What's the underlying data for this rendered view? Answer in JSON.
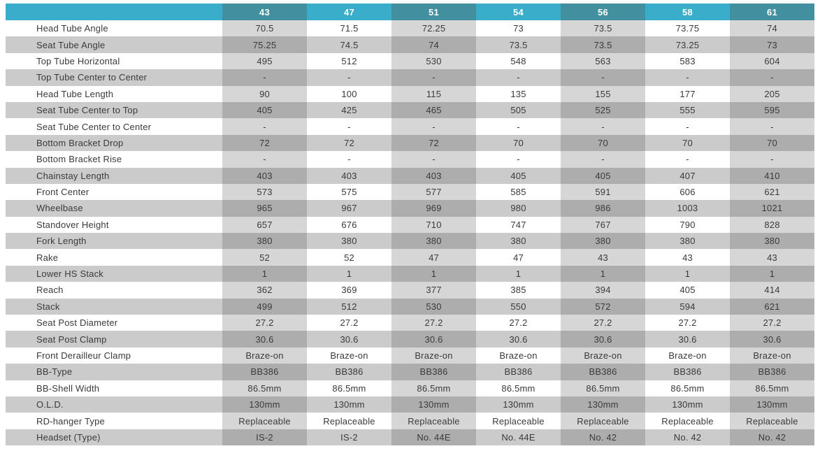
{
  "colors": {
    "head_light": "#3aadcb",
    "head_dark": "#42909f",
    "head_text": "#ffffff",
    "row_gray": "#cbcbcb",
    "shade_on_white": "#d6d6d6",
    "shade_on_gray": "#adadad",
    "body_text": "#3a3a3a"
  },
  "table": {
    "sizes": [
      "43",
      "47",
      "51",
      "54",
      "56",
      "58",
      "61"
    ],
    "rows": [
      {
        "label": "Head Tube Angle",
        "values": [
          "70.5",
          "71.5",
          "72.25",
          "73",
          "73.5",
          "73.75",
          "74"
        ]
      },
      {
        "label": "Seat Tube Angle",
        "values": [
          "75.25",
          "74.5",
          "74",
          "73.5",
          "73.5",
          "73.25",
          "73"
        ]
      },
      {
        "label": "Top Tube Horizontal",
        "values": [
          "495",
          "512",
          "530",
          "548",
          "563",
          "583",
          "604"
        ]
      },
      {
        "label": "Top Tube Center to Center",
        "values": [
          "-",
          "-",
          "-",
          "-",
          "-",
          "-",
          "-"
        ]
      },
      {
        "label": "Head Tube Length",
        "values": [
          "90",
          "100",
          "115",
          "135",
          "155",
          "177",
          "205"
        ]
      },
      {
        "label": "Seat Tube Center to Top",
        "values": [
          "405",
          "425",
          "465",
          "505",
          "525",
          "555",
          "595"
        ]
      },
      {
        "label": "Seat Tube Center to Center",
        "values": [
          "-",
          "-",
          "-",
          "-",
          "-",
          "-",
          "-"
        ]
      },
      {
        "label": "Bottom Bracket Drop",
        "values": [
          "72",
          "72",
          "72",
          "70",
          "70",
          "70",
          "70"
        ]
      },
      {
        "label": "Bottom Bracket Rise",
        "values": [
          "-",
          "-",
          "-",
          "-",
          "-",
          "-",
          "-"
        ]
      },
      {
        "label": "Chainstay Length",
        "values": [
          "403",
          "403",
          "403",
          "405",
          "405",
          "407",
          "410"
        ]
      },
      {
        "label": "Front Center",
        "values": [
          "573",
          "575",
          "577",
          "585",
          "591",
          "606",
          "621"
        ]
      },
      {
        "label": "Wheelbase",
        "values": [
          "965",
          "967",
          "969",
          "980",
          "986",
          "1003",
          "1021"
        ]
      },
      {
        "label": "Standover Height",
        "values": [
          "657",
          "676",
          "710",
          "747",
          "767",
          "790",
          "828"
        ]
      },
      {
        "label": "Fork Length",
        "values": [
          "380",
          "380",
          "380",
          "380",
          "380",
          "380",
          "380"
        ]
      },
      {
        "label": "Rake",
        "values": [
          "52",
          "52",
          "47",
          "47",
          "43",
          "43",
          "43"
        ]
      },
      {
        "label": "Lower HS Stack",
        "values": [
          "1",
          "1",
          "1",
          "1",
          "1",
          "1",
          "1"
        ]
      },
      {
        "label": "Reach",
        "values": [
          "362",
          "369",
          "377",
          "385",
          "394",
          "405",
          "414"
        ]
      },
      {
        "label": "Stack",
        "values": [
          "499",
          "512",
          "530",
          "550",
          "572",
          "594",
          "621"
        ]
      },
      {
        "label": "Seat Post Diameter",
        "values": [
          "27.2",
          "27.2",
          "27.2",
          "27.2",
          "27.2",
          "27.2",
          "27.2"
        ]
      },
      {
        "label": "Seat Post Clamp",
        "values": [
          "30.6",
          "30.6",
          "30.6",
          "30.6",
          "30.6",
          "30.6",
          "30.6"
        ]
      },
      {
        "label": "Front Derailleur Clamp",
        "values": [
          "Braze-on",
          "Braze-on",
          "Braze-on",
          "Braze-on",
          "Braze-on",
          "Braze-on",
          "Braze-on"
        ]
      },
      {
        "label": "BB-Type",
        "values": [
          "BB386",
          "BB386",
          "BB386",
          "BB386",
          "BB386",
          "BB386",
          "BB386"
        ]
      },
      {
        "label": "BB-Shell Width",
        "values": [
          "86.5mm",
          "86.5mm",
          "86.5mm",
          "86.5mm",
          "86.5mm",
          "86.5mm",
          "86.5mm"
        ]
      },
      {
        "label": "O.L.D.",
        "values": [
          "130mm",
          "130mm",
          "130mm",
          "130mm",
          "130mm",
          "130mm",
          "130mm"
        ]
      },
      {
        "label": "RD-hanger Type",
        "values": [
          "Replaceable",
          "Replaceable",
          "Replaceable",
          "Replaceable",
          "Replaceable",
          "Replaceable",
          "Replaceable"
        ]
      },
      {
        "label": "Headset (Type)",
        "values": [
          "IS-2",
          "IS-2",
          "No. 44E",
          "No. 44E",
          "No. 42",
          "No. 42",
          "No. 42"
        ]
      }
    ]
  }
}
